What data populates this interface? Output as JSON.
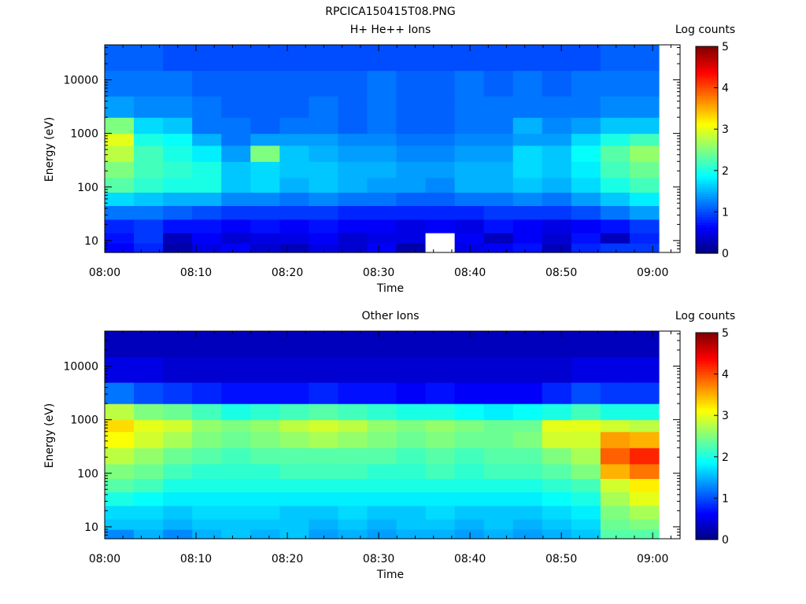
{
  "page_title": "RPCICA150415T08.PNG",
  "colormap": [
    "#00007f",
    "#0000ff",
    "#007fff",
    "#00ffff",
    "#7fff7f",
    "#ffff00",
    "#ff7f00",
    "#ff0000",
    "#7f0000"
  ],
  "chart_data": [
    {
      "type": "heatmap",
      "title": "H+ He++ Ions",
      "xlabel": "Time",
      "ylabel": "Energy (eV)",
      "x_ticks": [
        "08:00",
        "08:10",
        "08:20",
        "08:30",
        "08:40",
        "08:50",
        "09:00"
      ],
      "y_ticks": [
        "10",
        "100",
        "1000",
        "10000"
      ],
      "y_scale": "log",
      "ylim": [
        6,
        45000
      ],
      "xlim_minutes": [
        0,
        63
      ],
      "time_bins": 19,
      "colorbar": {
        "label": "Log counts",
        "ticks": [
          "0",
          "1",
          "2",
          "3",
          "4",
          "5"
        ],
        "range": [
          0,
          5
        ]
      },
      "energy_bands": [
        {
          "energy_range": [
            6,
            9
          ],
          "values": [
            0.6,
            0.8,
            0.2,
            0.5,
            0.6,
            0.4,
            0.3,
            0.5,
            0.4,
            0.6,
            0.2,
            null,
            0.5,
            0.6,
            0.7,
            0.3,
            0.8,
            0.9,
            0.9
          ]
        },
        {
          "energy_range": [
            9,
            14
          ],
          "values": [
            0.7,
            0.9,
            0.3,
            0.6,
            0.4,
            0.5,
            0.5,
            0.6,
            0.4,
            0.5,
            0.5,
            null,
            0.6,
            0.3,
            0.6,
            0.4,
            0.7,
            0.3,
            0.8
          ]
        },
        {
          "energy_range": [
            14,
            25
          ],
          "values": [
            0.8,
            0.9,
            0.7,
            0.7,
            0.6,
            0.7,
            0.6,
            0.7,
            0.6,
            0.6,
            0.5,
            0.6,
            0.5,
            0.7,
            0.6,
            0.5,
            0.6,
            0.7,
            0.9
          ]
        },
        {
          "energy_range": [
            25,
            45
          ],
          "values": [
            1.2,
            1.2,
            1.1,
            1.0,
            0.9,
            0.9,
            0.9,
            0.9,
            0.8,
            0.8,
            0.8,
            0.8,
            0.8,
            0.9,
            0.9,
            0.9,
            1.0,
            1.2,
            1.4
          ]
        },
        {
          "energy_range": [
            45,
            80
          ],
          "values": [
            1.7,
            1.6,
            1.5,
            1.5,
            1.3,
            1.3,
            1.2,
            1.3,
            1.2,
            1.2,
            1.1,
            1.1,
            1.2,
            1.2,
            1.3,
            1.2,
            1.4,
            1.6,
            1.8
          ]
        },
        {
          "energy_range": [
            80,
            150
          ],
          "values": [
            2.3,
            2.1,
            2.0,
            2.0,
            1.6,
            1.7,
            1.5,
            1.6,
            1.5,
            1.4,
            1.4,
            1.3,
            1.5,
            1.5,
            1.6,
            1.5,
            1.7,
            2.0,
            2.2
          ]
        },
        {
          "energy_range": [
            150,
            300
          ],
          "values": [
            2.5,
            2.2,
            2.1,
            2.0,
            1.6,
            1.7,
            1.6,
            1.6,
            1.5,
            1.5,
            1.4,
            1.4,
            1.5,
            1.5,
            1.7,
            1.6,
            1.8,
            2.2,
            2.4
          ]
        },
        {
          "energy_range": [
            300,
            600
          ],
          "values": [
            2.8,
            2.2,
            2.0,
            1.8,
            1.4,
            2.5,
            1.6,
            1.5,
            1.4,
            1.4,
            1.3,
            1.3,
            1.4,
            1.4,
            1.7,
            1.6,
            1.9,
            2.3,
            2.6
          ]
        },
        {
          "energy_range": [
            600,
            1000
          ],
          "values": [
            3.0,
            2.0,
            1.9,
            1.5,
            1.2,
            1.4,
            1.4,
            1.4,
            1.3,
            1.3,
            1.2,
            1.2,
            1.3,
            1.3,
            1.4,
            1.4,
            1.7,
            2.0,
            2.2
          ]
        },
        {
          "energy_range": [
            1000,
            2000
          ],
          "values": [
            2.5,
            1.7,
            1.6,
            1.2,
            1.2,
            1.1,
            1.2,
            1.2,
            1.1,
            1.2,
            1.1,
            1.1,
            1.2,
            1.2,
            1.5,
            1.3,
            1.4,
            1.6,
            1.6
          ]
        },
        {
          "energy_range": [
            2000,
            5000
          ],
          "values": [
            1.4,
            1.3,
            1.3,
            1.2,
            1.1,
            1.1,
            1.1,
            1.2,
            1.1,
            1.2,
            1.1,
            1.1,
            1.2,
            1.2,
            1.2,
            1.2,
            1.2,
            1.3,
            1.3
          ]
        },
        {
          "energy_range": [
            5000,
            15000
          ],
          "values": [
            1.2,
            1.2,
            1.2,
            1.1,
            1.1,
            1.1,
            1.1,
            1.1,
            1.1,
            1.2,
            1.1,
            1.1,
            1.2,
            1.1,
            1.2,
            1.1,
            1.2,
            1.2,
            1.2
          ]
        },
        {
          "energy_range": [
            15000,
            45000
          ],
          "values": [
            1.1,
            1.1,
            1.0,
            1.0,
            1.0,
            1.0,
            1.0,
            1.0,
            1.0,
            1.0,
            1.0,
            1.0,
            1.0,
            1.0,
            1.0,
            1.0,
            1.0,
            1.1,
            1.1
          ]
        }
      ]
    },
    {
      "type": "heatmap",
      "title": "Other Ions",
      "xlabel": "Time",
      "ylabel": "Energy (eV)",
      "x_ticks": [
        "08:00",
        "08:10",
        "08:20",
        "08:30",
        "08:40",
        "08:50",
        "09:00"
      ],
      "y_ticks": [
        "10",
        "100",
        "1000",
        "10000"
      ],
      "y_scale": "log",
      "ylim": [
        6,
        45000
      ],
      "xlim_minutes": [
        0,
        63
      ],
      "time_bins": 19,
      "colorbar": {
        "label": "Log counts",
        "ticks": [
          "0",
          "1",
          "2",
          "3",
          "4",
          "5"
        ],
        "range": [
          0,
          5
        ]
      },
      "energy_bands": [
        {
          "energy_range": [
            6,
            9
          ],
          "values": [
            1.3,
            1.5,
            1.3,
            1.5,
            1.6,
            1.5,
            1.6,
            1.4,
            1.5,
            1.4,
            1.5,
            1.5,
            1.4,
            1.5,
            1.4,
            1.5,
            1.6,
            2.3,
            2.3
          ]
        },
        {
          "energy_range": [
            9,
            14
          ],
          "values": [
            1.6,
            1.6,
            1.5,
            1.6,
            1.6,
            1.6,
            1.6,
            1.5,
            1.6,
            1.5,
            1.6,
            1.6,
            1.5,
            1.6,
            1.5,
            1.6,
            1.7,
            2.4,
            2.5
          ]
        },
        {
          "energy_range": [
            14,
            25
          ],
          "values": [
            1.7,
            1.7,
            1.6,
            1.7,
            1.7,
            1.7,
            1.6,
            1.6,
            1.7,
            1.6,
            1.6,
            1.7,
            1.6,
            1.6,
            1.6,
            1.7,
            1.8,
            2.5,
            2.7
          ]
        },
        {
          "energy_range": [
            25,
            45
          ],
          "values": [
            2.0,
            1.9,
            1.8,
            1.8,
            1.8,
            1.8,
            1.8,
            1.8,
            1.8,
            1.8,
            1.8,
            1.8,
            1.8,
            1.8,
            1.8,
            1.9,
            2.0,
            2.7,
            3.0
          ]
        },
        {
          "energy_range": [
            45,
            80
          ],
          "values": [
            2.3,
            2.2,
            2.0,
            2.0,
            2.0,
            2.0,
            2.0,
            2.0,
            2.0,
            2.0,
            2.0,
            2.0,
            2.0,
            2.0,
            2.0,
            2.1,
            2.2,
            2.9,
            3.2
          ]
        },
        {
          "energy_range": [
            80,
            150
          ],
          "values": [
            2.5,
            2.4,
            2.2,
            2.1,
            2.1,
            2.1,
            2.2,
            2.2,
            2.2,
            2.1,
            2.1,
            2.2,
            2.1,
            2.2,
            2.2,
            2.3,
            2.5,
            3.5,
            3.8
          ]
        },
        {
          "energy_range": [
            150,
            300
          ],
          "values": [
            2.8,
            2.6,
            2.4,
            2.3,
            2.2,
            2.3,
            2.3,
            2.3,
            2.3,
            2.3,
            2.2,
            2.3,
            2.2,
            2.3,
            2.3,
            2.5,
            2.7,
            3.9,
            4.2
          ]
        },
        {
          "energy_range": [
            300,
            600
          ],
          "values": [
            3.1,
            2.9,
            2.7,
            2.5,
            2.4,
            2.5,
            2.6,
            2.7,
            2.6,
            2.5,
            2.4,
            2.5,
            2.4,
            2.4,
            2.5,
            2.9,
            2.9,
            3.6,
            3.5
          ]
        },
        {
          "energy_range": [
            600,
            1000
          ],
          "values": [
            3.3,
            3.0,
            2.9,
            2.6,
            2.5,
            2.6,
            2.8,
            2.9,
            2.8,
            2.6,
            2.5,
            2.6,
            2.5,
            2.4,
            2.4,
            3.0,
            3.0,
            2.9,
            2.8
          ]
        },
        {
          "energy_range": [
            1000,
            2000
          ],
          "values": [
            2.8,
            2.5,
            2.4,
            2.2,
            2.0,
            2.1,
            2.2,
            2.3,
            2.2,
            2.1,
            2.0,
            2.0,
            1.9,
            1.8,
            1.9,
            2.0,
            2.2,
            2.0,
            2.0
          ]
        },
        {
          "energy_range": [
            2000,
            5000
          ],
          "values": [
            1.2,
            1.0,
            0.9,
            0.8,
            0.7,
            0.7,
            0.7,
            0.8,
            0.7,
            0.7,
            0.6,
            0.7,
            0.6,
            0.6,
            0.6,
            0.8,
            1.0,
            0.9,
            0.9
          ]
        },
        {
          "energy_range": [
            5000,
            15000
          ],
          "values": [
            0.5,
            0.5,
            0.4,
            0.4,
            0.4,
            0.4,
            0.4,
            0.4,
            0.4,
            0.4,
            0.4,
            0.4,
            0.4,
            0.4,
            0.4,
            0.4,
            0.5,
            0.5,
            0.5
          ]
        },
        {
          "energy_range": [
            15000,
            45000
          ],
          "values": [
            0.3,
            0.3,
            0.3,
            0.3,
            0.3,
            0.3,
            0.3,
            0.3,
            0.3,
            0.3,
            0.3,
            0.3,
            0.3,
            0.3,
            0.3,
            0.3,
            0.3,
            0.3,
            0.3
          ]
        }
      ]
    }
  ]
}
